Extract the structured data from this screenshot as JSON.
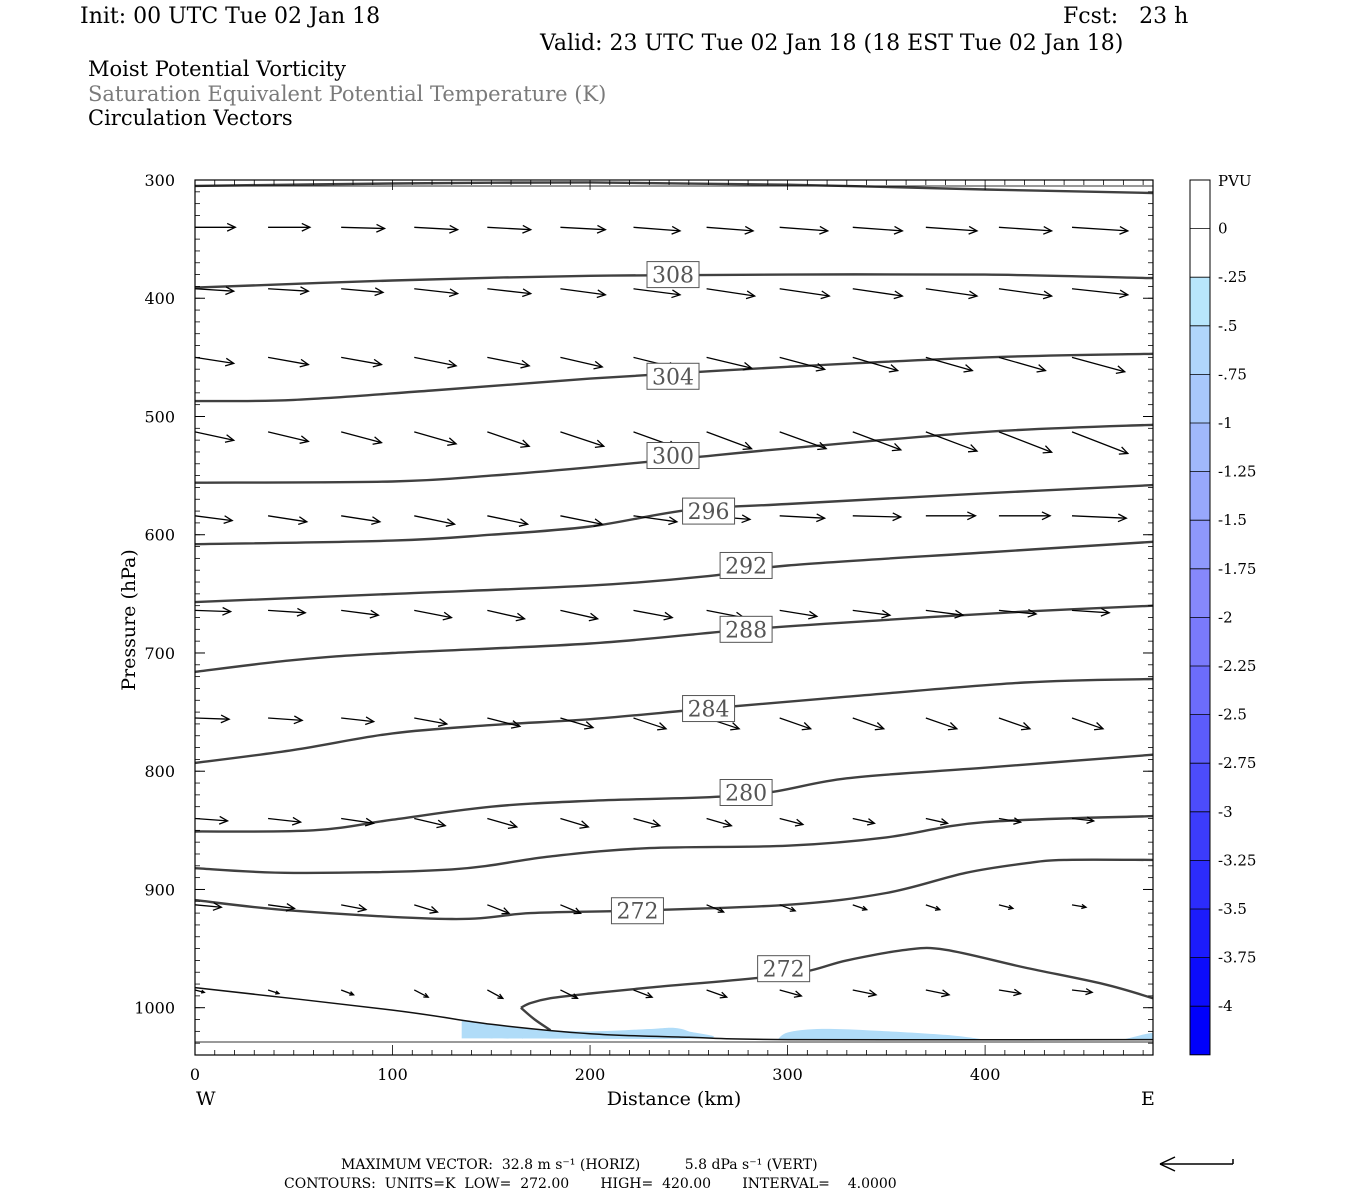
{
  "header": {
    "init": "Init: 00 UTC Tue 02 Jan 18",
    "fcst": "Fcst:   23 h",
    "valid": "Valid: 23 UTC Tue 02 Jan 18 (18 EST Tue 02 Jan 18)",
    "field1": "Moist Potential Vorticity",
    "field2": "Saturation Equivalent Potential Temperature (K)",
    "field3": "Circulation Vectors"
  },
  "colors": {
    "contour": "#404040",
    "label_gray": "#7a7a7a",
    "fill": "#b0dcf8"
  },
  "footer": {
    "max_vector": "MAXIMUM VECTOR:  32.8 m s⁻¹ (HORIZ)          5.8 dPa s⁻¹ (VERT)",
    "contours": "CONTOURS:  UNITS=K  LOW=  272.00       HIGH=  420.00       INTERVAL=    4.0000",
    "ref_vector_icon": "left-arrow-icon"
  },
  "chart_data": {
    "type": "cross-section",
    "xlabel": "Distance (km)",
    "ylabel": "Pressure (hPa)",
    "xlim": [
      0,
      485
    ],
    "ylim": [
      300,
      1040
    ],
    "y_log": false,
    "xticks": [
      "0",
      "100",
      "200",
      "300",
      "400"
    ],
    "yticks": [
      "300",
      "400",
      "500",
      "600",
      "700",
      "800",
      "900",
      "1000"
    ],
    "west_label": "W",
    "east_label": "E",
    "colorbar": {
      "unit": "PVU",
      "labels": [
        "0",
        "-.25",
        "-.5",
        "-.75",
        "-1",
        "-1.25",
        "-1.5",
        "-1.75",
        "-2",
        "-2.25",
        "-2.5",
        "-2.75",
        "-3",
        "-3.25",
        "-3.5",
        "-3.75",
        "-4"
      ],
      "colors": [
        "#ffffff",
        "#ffffff",
        "#b8e6fc",
        "#b0d6fc",
        "#a8c8fc",
        "#a0b8fc",
        "#98a8fc",
        "#8e98fc",
        "#8688fc",
        "#7a7afc",
        "#6c6cfc",
        "#5c5cfc",
        "#4c4cfc",
        "#3c3cfc",
        "#2c2cfc",
        "#1c1cfc",
        "#0c0cfc",
        "#0000fc"
      ]
    },
    "contours": [
      {
        "label": "",
        "pts": [
          [
            0,
            305
          ],
          [
            100,
            303
          ],
          [
            200,
            302
          ],
          [
            300,
            304
          ],
          [
            400,
            308
          ],
          [
            485,
            311
          ]
        ]
      },
      {
        "label": "308",
        "lx": 242,
        "ly": 380,
        "pts": [
          [
            0,
            391
          ],
          [
            100,
            385
          ],
          [
            200,
            381
          ],
          [
            300,
            380
          ],
          [
            400,
            380
          ],
          [
            485,
            383
          ]
        ]
      },
      {
        "label": "",
        "pts": [
          [
            0,
            487
          ],
          [
            50,
            486
          ],
          [
            120,
            478
          ],
          [
            200,
            468
          ],
          [
            300,
            458
          ],
          [
            400,
            450
          ],
          [
            485,
            447
          ]
        ]
      },
      {
        "label": "304",
        "lx": 242,
        "ly": 466,
        "pts": []
      },
      {
        "label": "",
        "pts": [
          [
            0,
            556
          ],
          [
            100,
            555
          ],
          [
            150,
            550
          ],
          [
            200,
            543
          ],
          [
            250,
            535
          ],
          [
            300,
            527
          ],
          [
            400,
            513
          ],
          [
            485,
            507
          ]
        ]
      },
      {
        "label": "300",
        "lx": 242,
        "ly": 533,
        "pts": []
      },
      {
        "label": "296",
        "lx": 260,
        "ly": 580,
        "pts": [
          [
            0,
            608
          ],
          [
            100,
            605
          ],
          [
            150,
            600
          ],
          [
            200,
            593
          ],
          [
            250,
            579
          ],
          [
            300,
            574
          ],
          [
            400,
            565
          ],
          [
            485,
            558
          ]
        ]
      },
      {
        "label": "292",
        "lx": 279,
        "ly": 626,
        "pts": [
          [
            0,
            657
          ],
          [
            100,
            650
          ],
          [
            200,
            643
          ],
          [
            260,
            635
          ],
          [
            300,
            626
          ],
          [
            400,
            615
          ],
          [
            485,
            606
          ]
        ]
      },
      {
        "label": "288",
        "lx": 279,
        "ly": 680,
        "pts": [
          [
            0,
            716
          ],
          [
            50,
            706
          ],
          [
            100,
            700
          ],
          [
            200,
            692
          ],
          [
            280,
            680
          ],
          [
            350,
            672
          ],
          [
            420,
            665
          ],
          [
            485,
            660
          ]
        ]
      },
      {
        "label": "284",
        "lx": 260,
        "ly": 747,
        "pts": [
          [
            0,
            793
          ],
          [
            50,
            782
          ],
          [
            100,
            768
          ],
          [
            150,
            761
          ],
          [
            200,
            756
          ],
          [
            260,
            747
          ],
          [
            330,
            737
          ],
          [
            420,
            725
          ],
          [
            485,
            722
          ]
        ]
      },
      {
        "label": "280",
        "lx": 279,
        "ly": 818,
        "pts": [
          [
            0,
            851
          ],
          [
            60,
            850
          ],
          [
            100,
            841
          ],
          [
            150,
            830
          ],
          [
            200,
            825
          ],
          [
            280,
            820
          ],
          [
            330,
            806
          ],
          [
            400,
            797
          ],
          [
            485,
            786
          ]
        ]
      },
      {
        "label": "",
        "pts": [
          [
            0,
            882
          ],
          [
            50,
            886
          ],
          [
            130,
            883
          ],
          [
            180,
            872
          ],
          [
            230,
            865
          ],
          [
            300,
            863
          ],
          [
            350,
            856
          ],
          [
            400,
            843
          ],
          [
            485,
            838
          ]
        ]
      },
      {
        "label": "272",
        "lx": 224,
        "ly": 918,
        "pts": [
          [
            0,
            909
          ],
          [
            50,
            918
          ],
          [
            130,
            925
          ],
          [
            170,
            920
          ],
          [
            220,
            918
          ],
          [
            300,
            913
          ],
          [
            350,
            903
          ],
          [
            390,
            886
          ],
          [
            420,
            878
          ],
          [
            440,
            875
          ],
          [
            485,
            875
          ]
        ]
      },
      {
        "label": "272",
        "lx": 298,
        "ly": 967,
        "pts": [
          [
            165,
            1000
          ],
          [
            170,
            996
          ],
          [
            180,
            992
          ],
          [
            200,
            988
          ],
          [
            230,
            983
          ],
          [
            300,
            972
          ],
          [
            330,
            960
          ],
          [
            360,
            951
          ],
          [
            380,
            951
          ],
          [
            420,
            966
          ],
          [
            460,
            980
          ],
          [
            485,
            992
          ]
        ]
      },
      {
        "label": "",
        "pts": [
          [
            165,
            1000
          ],
          [
            172,
            1010
          ],
          [
            180,
            1019
          ]
        ]
      },
      {
        "label": "",
        "thin": true,
        "pts": [
          [
            0,
            983
          ],
          [
            100,
            1002
          ],
          [
            150,
            1014
          ],
          [
            200,
            1022
          ],
          [
            250,
            1025
          ],
          [
            300,
            1027
          ],
          [
            485,
            1027
          ]
        ]
      }
    ],
    "pv_fill": [
      {
        "pts": [
          [
            135,
            1011
          ],
          [
            170,
            1018
          ],
          [
            200,
            1020
          ],
          [
            230,
            1018
          ],
          [
            242,
            1017
          ],
          [
            250,
            1020
          ],
          [
            255,
            1026
          ],
          [
            135,
            1026
          ]
        ]
      },
      {
        "pts": [
          [
            295,
            1027
          ],
          [
            300,
            1021
          ],
          [
            315,
            1018
          ],
          [
            340,
            1019
          ],
          [
            380,
            1023
          ],
          [
            400,
            1027
          ]
        ]
      },
      {
        "pts": [
          [
            470,
            1027
          ],
          [
            482,
            1022
          ],
          [
            485,
            1022
          ],
          [
            485,
            1027
          ]
        ]
      }
    ],
    "vectors": [
      {
        "p": 340,
        "x0": 0,
        "dx": 37,
        "n": 13,
        "dxs": [
          26,
          27,
          28,
          28,
          28,
          29,
          30,
          30,
          31,
          32,
          33,
          34,
          36
        ],
        "dps": [
          0,
          0,
          1,
          2,
          2,
          2,
          3,
          3,
          3,
          3,
          3,
          3,
          3
        ]
      },
      {
        "p": 392,
        "x0": 0,
        "dx": 37,
        "n": 13,
        "dxs": [
          25,
          26,
          27,
          28,
          28,
          29,
          30,
          31,
          32,
          32,
          33,
          34,
          36
        ],
        "dps": [
          2,
          2,
          3,
          4,
          4,
          5,
          5,
          6,
          6,
          6,
          6,
          6,
          5
        ]
      },
      {
        "p": 450,
        "x0": 0,
        "dx": 37,
        "n": 13,
        "dxs": [
          25,
          26,
          26,
          27,
          27,
          27,
          28,
          29,
          29,
          29,
          30,
          30,
          34
        ],
        "dps": [
          5,
          6,
          6,
          7,
          7,
          8,
          9,
          9,
          10,
          11,
          11,
          11,
          12
        ]
      },
      {
        "p": 513,
        "x0": 0,
        "dx": 37,
        "n": 13,
        "dxs": [
          25,
          26,
          26,
          27,
          27,
          28,
          28,
          29,
          30,
          31,
          33,
          34,
          36
        ],
        "dps": [
          7,
          8,
          9,
          10,
          12,
          12,
          13,
          14,
          14,
          15,
          16,
          17,
          18
        ]
      },
      {
        "p": 584,
        "x0": 0,
        "dx": 37,
        "n": 13,
        "dxs": [
          24,
          25,
          25,
          26,
          26,
          27,
          28,
          28,
          29,
          31,
          32,
          33,
          35
        ],
        "dps": [
          4,
          5,
          5,
          7,
          7,
          7,
          5,
          3,
          2,
          1,
          0,
          0,
          2
        ]
      },
      {
        "p": 664,
        "x0": 0,
        "dx": 37,
        "n": 13,
        "dxs": [
          23,
          24,
          24,
          24,
          24,
          24,
          25,
          24,
          24,
          24,
          24,
          24,
          24
        ],
        "dps": [
          1,
          2,
          4,
          6,
          7,
          7,
          6,
          6,
          5,
          4,
          4,
          3,
          2
        ]
      },
      {
        "p": 755,
        "x0": 0,
        "dx": 37,
        "n": 13,
        "dxs": [
          22,
          22,
          21,
          21,
          21,
          21,
          21,
          21,
          20,
          20,
          20,
          20,
          20
        ],
        "dps": [
          1,
          2,
          3,
          5,
          7,
          8,
          9,
          9,
          9,
          9,
          9,
          9,
          9
        ]
      },
      {
        "p": 840,
        "x0": 0,
        "dx": 37,
        "n": 13,
        "dxs": [
          21,
          21,
          21,
          20,
          19,
          18,
          17,
          16,
          15,
          14,
          14,
          14,
          14
        ],
        "dps": [
          2,
          3,
          4,
          6,
          7,
          7,
          6,
          6,
          5,
          4,
          4,
          3,
          2
        ]
      },
      {
        "p": 913,
        "x0": 0,
        "dx": 37,
        "n": 13,
        "dxs": [
          17,
          17,
          16,
          15,
          14,
          13,
          12,
          11,
          10,
          9,
          9,
          9,
          9
        ],
        "dps": [
          2,
          3,
          4,
          6,
          7,
          7,
          6,
          6,
          5,
          4,
          4,
          3,
          2
        ]
      },
      {
        "p": 985,
        "x0": 0,
        "dx": 37,
        "n": 13,
        "dxs": [
          6,
          7,
          8,
          9,
          10,
          11,
          12,
          13,
          14,
          15,
          15,
          14,
          13
        ],
        "dps": [
          2,
          3,
          4,
          6,
          7,
          7,
          6,
          6,
          5,
          4,
          4,
          3,
          2
        ]
      }
    ]
  }
}
